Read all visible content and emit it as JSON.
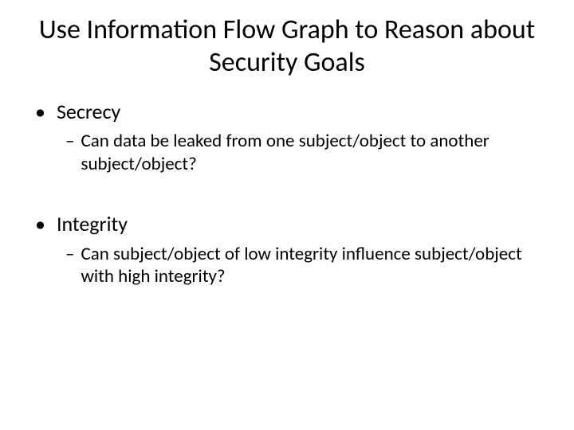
{
  "slide": {
    "title": "Use Information Flow Graph to Reason about Security Goals",
    "bullets": [
      {
        "label": "Secrecy",
        "sub": "Can data be leaked from one subject/object to another subject/object?"
      },
      {
        "label": "Integrity",
        "sub": "Can subject/object of low integrity influence subject/object with high integrity?"
      }
    ],
    "colors": {
      "background": "#ffffff",
      "text": "#000000"
    },
    "typography": {
      "title_fontsize": 34,
      "bullet_fontsize": 26,
      "sub_fontsize": 23,
      "font_family": "Calibri"
    }
  }
}
